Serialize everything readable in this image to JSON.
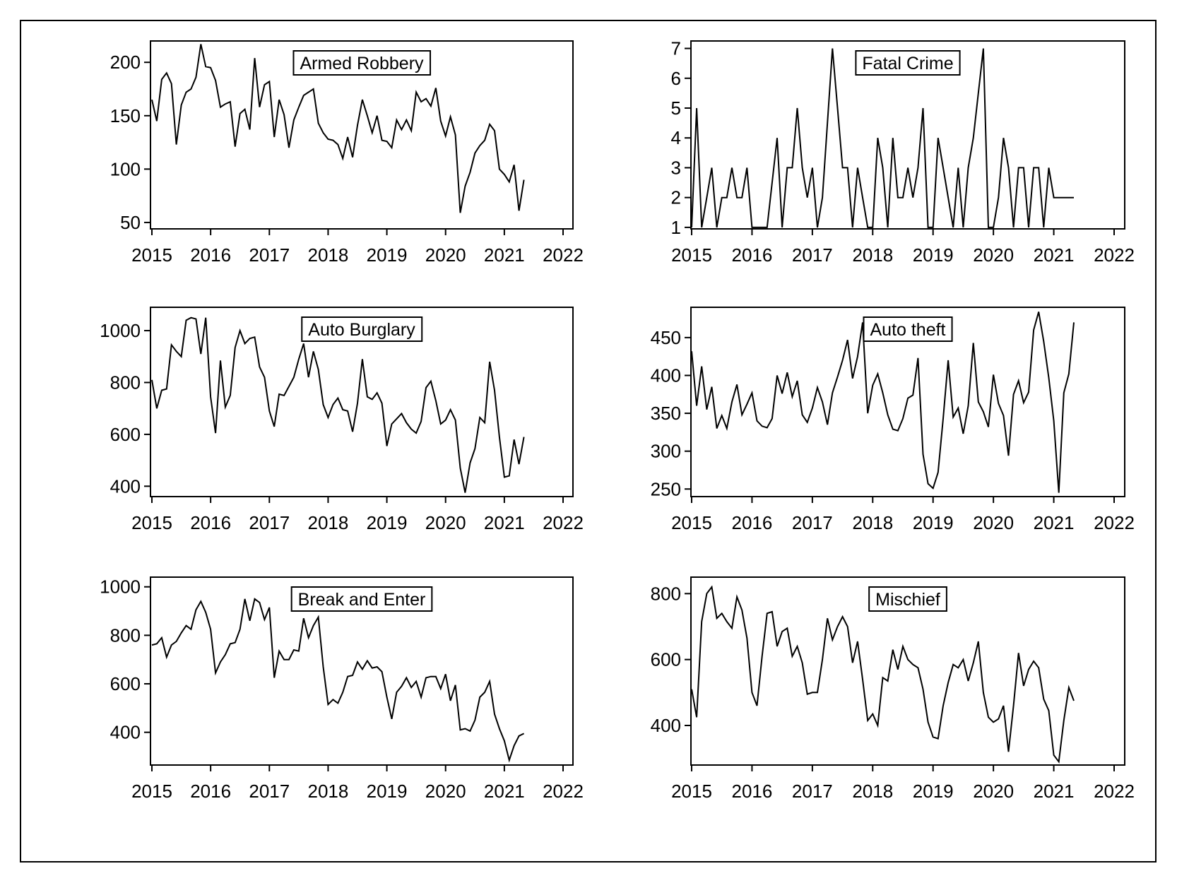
{
  "figure": {
    "background": "#ffffff",
    "line_color": "#000000"
  },
  "chart_data": [
    {
      "type": "line",
      "title": "Armed Robbery",
      "xlabel": "",
      "ylabel": "",
      "xlim": [
        2015,
        2022
      ],
      "ylim": [
        44,
        220
      ],
      "x_ticks": [
        2015,
        2016,
        2017,
        2018,
        2019,
        2020,
        2021,
        2022
      ],
      "y_ticks": [
        50,
        100,
        150,
        200
      ],
      "start": 2015,
      "step": 0.0833333,
      "values": [
        165,
        145,
        184,
        190,
        180,
        123,
        160,
        172,
        175,
        186,
        217,
        196,
        195,
        183,
        158,
        161,
        163,
        121,
        152,
        156,
        137,
        204,
        158,
        179,
        182,
        130,
        165,
        151,
        120,
        146,
        158,
        169,
        172,
        175,
        143,
        134,
        128,
        127,
        123,
        110,
        130,
        111,
        141,
        165,
        150,
        134,
        150,
        127,
        126,
        120,
        146,
        137,
        146,
        136,
        172,
        163,
        166,
        159,
        176,
        145,
        131,
        149,
        132,
        59,
        84,
        97,
        115,
        122,
        127,
        142,
        136,
        100,
        95,
        88,
        104,
        61,
        90
      ]
    },
    {
      "type": "line",
      "title": "Fatal Crime",
      "xlabel": "",
      "ylabel": "",
      "xlim": [
        2015,
        2022
      ],
      "ylim": [
        0.95,
        7.25
      ],
      "x_ticks": [
        2015,
        2016,
        2017,
        2018,
        2019,
        2020,
        2021,
        2022
      ],
      "y_ticks": [
        1,
        2,
        3,
        4,
        5,
        6,
        7
      ],
      "start": 2015,
      "step": 0.0833333,
      "values": [
        1,
        5,
        1,
        2,
        3,
        1,
        2,
        2,
        3,
        2,
        2,
        3,
        1,
        1,
        1,
        1,
        2.5,
        4,
        1,
        3,
        3,
        5,
        3,
        2,
        3,
        1,
        2,
        4.5,
        7,
        5,
        3,
        3,
        1,
        3,
        2,
        1,
        1,
        4,
        3,
        1,
        4,
        2,
        2,
        3,
        2,
        3,
        5,
        1,
        1,
        4,
        3,
        2,
        1,
        3,
        1,
        3,
        4,
        5.5,
        7,
        1,
        1,
        2,
        4,
        3,
        1,
        3,
        3,
        1,
        3,
        3,
        1,
        3,
        2,
        2,
        2,
        2,
        2
      ]
    },
    {
      "type": "line",
      "title": "Auto Burglary",
      "xlabel": "",
      "ylabel": "",
      "xlim": [
        2015,
        2022
      ],
      "ylim": [
        360,
        1090
      ],
      "x_ticks": [
        2015,
        2016,
        2017,
        2018,
        2019,
        2020,
        2021,
        2022
      ],
      "y_ticks": [
        400,
        600,
        800,
        1000
      ],
      "start": 2015,
      "step": 0.0833333,
      "values": [
        810,
        700,
        770,
        775,
        945,
        920,
        900,
        1040,
        1050,
        1045,
        910,
        1050,
        745,
        605,
        885,
        705,
        750,
        935,
        1000,
        950,
        970,
        975,
        860,
        820,
        690,
        630,
        755,
        750,
        785,
        820,
        890,
        950,
        820,
        920,
        850,
        715,
        665,
        715,
        740,
        695,
        690,
        610,
        720,
        890,
        745,
        735,
        760,
        720,
        555,
        640,
        660,
        680,
        645,
        620,
        605,
        650,
        780,
        805,
        730,
        640,
        655,
        695,
        655,
        470,
        375,
        490,
        545,
        665,
        645,
        880,
        770,
        590,
        435,
        440,
        580,
        485,
        590
      ]
    },
    {
      "type": "line",
      "title": "Auto theft",
      "xlabel": "",
      "ylabel": "",
      "xlim": [
        2015,
        2022
      ],
      "ylim": [
        240,
        490
      ],
      "x_ticks": [
        2015,
        2016,
        2017,
        2018,
        2019,
        2020,
        2021,
        2022
      ],
      "y_ticks": [
        250,
        300,
        350,
        400,
        450
      ],
      "start": 2015,
      "step": 0.0833333,
      "values": [
        432,
        360,
        412,
        355,
        385,
        330,
        347,
        330,
        365,
        388,
        348,
        362,
        377,
        340,
        333,
        331,
        343,
        400,
        376,
        404,
        372,
        393,
        348,
        338,
        357,
        384,
        365,
        335,
        377,
        398,
        420,
        447,
        396,
        425,
        470,
        350,
        387,
        402,
        377,
        348,
        329,
        327,
        343,
        370,
        374,
        423,
        296,
        257,
        251,
        272,
        343,
        420,
        345,
        357,
        323,
        360,
        443,
        365,
        352,
        332,
        401,
        363,
        347,
        294,
        375,
        393,
        364,
        378,
        460,
        484,
        445,
        397,
        340,
        245,
        377,
        402,
        470
      ]
    },
    {
      "type": "line",
      "title": "Break and Enter",
      "xlabel": "",
      "ylabel": "",
      "xlim": [
        2015,
        2022
      ],
      "ylim": [
        265,
        1040
      ],
      "x_ticks": [
        2015,
        2016,
        2017,
        2018,
        2019,
        2020,
        2021,
        2022
      ],
      "y_ticks": [
        400,
        600,
        800,
        1000
      ],
      "start": 2015,
      "step": 0.0833333,
      "values": [
        760,
        765,
        790,
        710,
        760,
        775,
        810,
        840,
        825,
        905,
        940,
        895,
        825,
        645,
        690,
        720,
        765,
        770,
        825,
        950,
        860,
        950,
        935,
        865,
        915,
        625,
        735,
        700,
        700,
        740,
        735,
        870,
        790,
        840,
        875,
        670,
        515,
        535,
        520,
        565,
        630,
        635,
        690,
        660,
        695,
        665,
        670,
        650,
        545,
        455,
        565,
        590,
        625,
        585,
        610,
        545,
        625,
        630,
        630,
        580,
        640,
        530,
        595,
        410,
        415,
        405,
        450,
        545,
        565,
        610,
        475,
        415,
        365,
        285,
        345,
        385,
        395
      ]
    },
    {
      "type": "line",
      "title": "Mischief",
      "xlabel": "",
      "ylabel": "",
      "xlim": [
        2015,
        2022
      ],
      "ylim": [
        280,
        850
      ],
      "x_ticks": [
        2015,
        2016,
        2017,
        2018,
        2019,
        2020,
        2021,
        2022
      ],
      "y_ticks": [
        400,
        600,
        800
      ],
      "start": 2015,
      "step": 0.0833333,
      "values": [
        510,
        425,
        715,
        800,
        820,
        725,
        740,
        715,
        695,
        790,
        750,
        665,
        500,
        460,
        610,
        740,
        745,
        640,
        685,
        695,
        610,
        640,
        590,
        495,
        500,
        500,
        600,
        725,
        660,
        700,
        730,
        700,
        590,
        655,
        540,
        415,
        435,
        400,
        545,
        535,
        630,
        570,
        640,
        600,
        585,
        575,
        510,
        410,
        365,
        360,
        460,
        530,
        585,
        575,
        600,
        535,
        590,
        655,
        500,
        425,
        410,
        420,
        460,
        320,
        460,
        620,
        520,
        570,
        595,
        575,
        480,
        445,
        310,
        290,
        415,
        515,
        475
      ]
    }
  ]
}
